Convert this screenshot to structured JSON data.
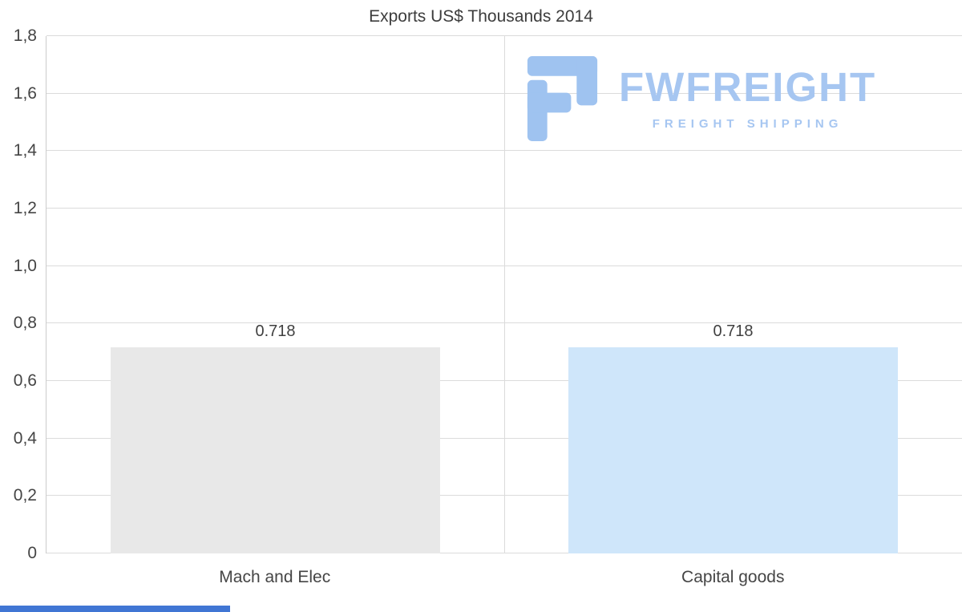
{
  "chart_data": {
    "type": "bar",
    "title": "Exports US$ Thousands 2014",
    "categories": [
      "Mach and Elec",
      "Capital goods"
    ],
    "values": [
      0.718,
      0.718
    ],
    "value_labels": [
      "0.718",
      "0.718"
    ],
    "bar_colors": [
      "#e8e8e8",
      "#cfe6fa"
    ],
    "xlabel": "",
    "ylabel": "",
    "ylim": [
      0,
      1.8
    ],
    "yticks": [
      {
        "value": 1.8,
        "label": "1,8"
      },
      {
        "value": 1.6,
        "label": "1,6"
      },
      {
        "value": 1.4,
        "label": "1,4"
      },
      {
        "value": 1.2,
        "label": "1,2"
      },
      {
        "value": 1.0,
        "label": "1,0"
      },
      {
        "value": 0.8,
        "label": "0,8"
      },
      {
        "value": 0.6,
        "label": "0,6"
      },
      {
        "value": 0.4,
        "label": "0,4"
      },
      {
        "value": 0.2,
        "label": "0,2"
      },
      {
        "value": 0,
        "label": "0"
      }
    ],
    "grid": "horizontal gridlines + vertical category divider",
    "legend": "none"
  },
  "watermark": {
    "brand": "FWFREIGHT",
    "tagline": "FREIGHT SHIPPING",
    "text_color": "#a6c6f1",
    "icon_color": "#9fc3f0"
  },
  "colors": {
    "background": "#ffffff",
    "gridline": "#dbdbdb",
    "text": "#454545",
    "bottom_strip": "#4076d4"
  }
}
